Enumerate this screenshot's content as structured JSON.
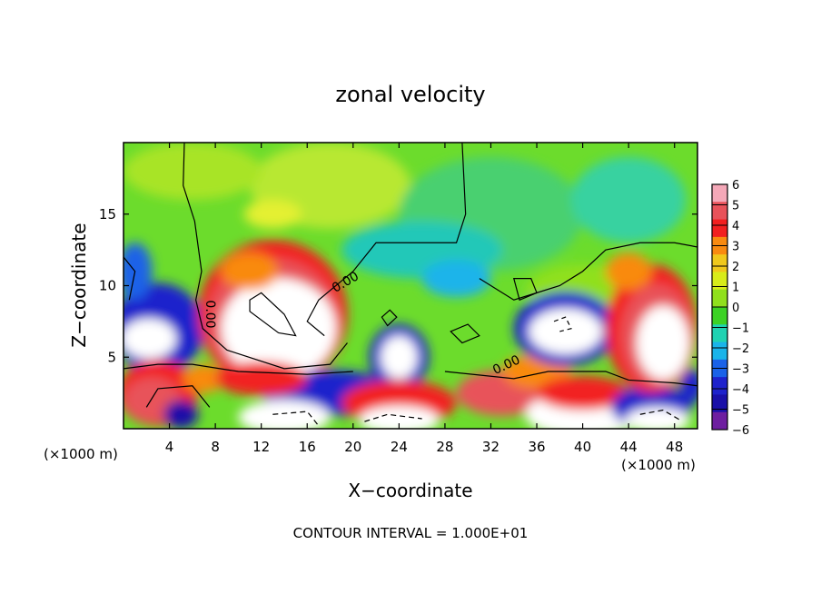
{
  "chart_data": {
    "type": "heatmap",
    "title": "zonal velocity",
    "xlabel": "X−coordinate",
    "ylabel": "Z−coordinate",
    "x_unit_left": "(×1000 m)",
    "x_unit_right": "(×1000 m)",
    "footer": "CONTOUR INTERVAL = 1.000E+01",
    "xlim": [
      0,
      50
    ],
    "ylim": [
      0,
      20
    ],
    "x_ticks": [
      4,
      8,
      12,
      16,
      20,
      24,
      28,
      32,
      36,
      40,
      44,
      48
    ],
    "y_ticks": [
      5,
      10,
      15
    ],
    "x_tick_labels": [
      "4",
      "8",
      "12",
      "16",
      "20",
      "24",
      "28",
      "32",
      "36",
      "40",
      "44",
      "48"
    ],
    "y_tick_labels": [
      "5",
      "10",
      "15"
    ],
    "colorbar": {
      "min": -6,
      "max": 6,
      "tick_labels": [
        "6",
        "5",
        "4",
        "3",
        "2",
        "1",
        "0",
        "−1",
        "−2",
        "−3",
        "−4",
        "−5",
        "−6"
      ],
      "colors": [
        "#f4a8b8",
        "#e8525a",
        "#f22020",
        "#f98a10",
        "#f0c81c",
        "#d8ec1a",
        "#90e01c",
        "#3cd224",
        "#20d2b2",
        "#1ab4ea",
        "#1a62e8",
        "#1e22cc",
        "#1a10a8",
        "#6e1ea0"
      ]
    },
    "contour_labels": [
      "0.00",
      "0.00",
      "0.00"
    ],
    "background_color": "#6cdc2c"
  }
}
